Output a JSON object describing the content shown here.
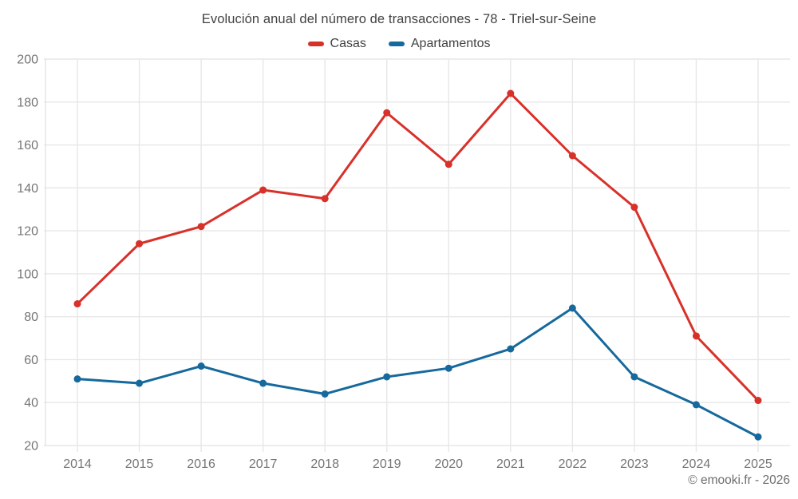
{
  "title": "Evolución anual del número de transacciones - 78 - Triel-sur-Seine",
  "legend": [
    {
      "label": "Casas",
      "color": "#d8312a"
    },
    {
      "label": "Apartamentos",
      "color": "#16699d"
    }
  ],
  "footer": {
    "copyright": "© emooki.fr - 2026"
  },
  "colors": {
    "title_text": "#424242",
    "axis_text": "#757575",
    "gridline": "#e7e7e7",
    "axis_boundary": "#e0e0e0",
    "background": "#ffffff",
    "copyright_text": "#6e6e6e"
  },
  "chart_data": {
    "type": "line",
    "title": "Evolución anual del número de transacciones - 78 - Triel-sur-Seine",
    "x": [
      2014,
      2015,
      2016,
      2017,
      2018,
      2019,
      2020,
      2021,
      2022,
      2023,
      2024,
      2025
    ],
    "series": [
      {
        "name": "Casas",
        "color": "#d8312a",
        "values": [
          86,
          114,
          122,
          139,
          135,
          175,
          151,
          184,
          155,
          131,
          71,
          41
        ]
      },
      {
        "name": "Apartamentos",
        "color": "#16699d",
        "values": [
          51,
          49,
          57,
          49,
          44,
          52,
          56,
          65,
          84,
          52,
          39,
          24
        ]
      }
    ],
    "xlabel": "",
    "ylabel": "",
    "ylim": [
      20,
      200
    ],
    "ytick_step": 20,
    "grid": true,
    "legend_position": "top",
    "marker": "circle",
    "marker_radius": 4.5,
    "line_width": 3
  }
}
